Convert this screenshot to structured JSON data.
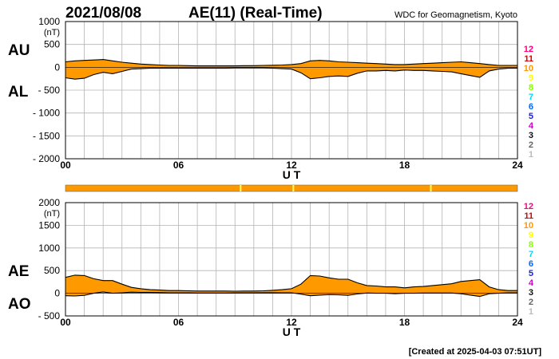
{
  "header": {
    "date": "2021/08/08",
    "title": "AE(11) (Real-Time)",
    "source": "WDC for Geomagnetism, Kyoto"
  },
  "footer": {
    "created": "[Created at 2025-04-03 07:51UT]"
  },
  "colors": {
    "fill": "#ff9900",
    "grid": "#b4b4b4",
    "bar": "#ff9900",
    "bar_mark": "#ffff66"
  },
  "station_legend": [
    {
      "label": "12",
      "color": "#ff0080"
    },
    {
      "label": "11",
      "color": "#e00000"
    },
    {
      "label": "10",
      "color": "#ff9900"
    },
    {
      "label": "9",
      "color": "#ffff00"
    },
    {
      "label": "8",
      "color": "#88ff00"
    },
    {
      "label": "7",
      "color": "#00d8ff"
    },
    {
      "label": "6",
      "color": "#0066ff"
    },
    {
      "label": "5",
      "color": "#2222cc"
    },
    {
      "label": "4",
      "color": "#cc00cc"
    },
    {
      "label": "3",
      "color": "#111111"
    },
    {
      "label": "2",
      "color": "#666666"
    },
    {
      "label": "1",
      "color": "#bbbbbb"
    }
  ],
  "data_coverage_bar": {
    "marks_ut": [
      9.3,
      12.1,
      19.4
    ]
  },
  "chart_data": [
    {
      "type": "area",
      "panel": "AU/AL",
      "upper_label": "AU",
      "lower_label": "AL",
      "unit": "(nT)",
      "xlabel": "U T",
      "xlim": [
        0,
        24
      ],
      "ylim": [
        -2000,
        1000
      ],
      "yticks": [
        1000,
        500,
        0,
        -500,
        -1000,
        -1500,
        -2000
      ],
      "ytick_labels": [
        "1000",
        "500",
        "0",
        "- 500",
        "- 1000",
        "- 1500",
        "- 2000"
      ],
      "xticks": [
        0,
        6,
        12,
        18,
        24
      ],
      "xtick_labels": [
        "00",
        "06",
        "12",
        "18",
        "24"
      ],
      "x": [
        0,
        0.5,
        1,
        1.5,
        2,
        2.5,
        3,
        3.5,
        4,
        4.5,
        5,
        5.5,
        6,
        6.5,
        7,
        7.5,
        8,
        8.5,
        9,
        9.5,
        10,
        10.5,
        11,
        11.5,
        12,
        12.5,
        13,
        13.5,
        14,
        14.5,
        15,
        15.5,
        16,
        16.5,
        17,
        17.5,
        18,
        18.5,
        19,
        19.5,
        20,
        20.5,
        21,
        21.5,
        22,
        22.5,
        23,
        23.5,
        24
      ],
      "series": [
        {
          "name": "AU",
          "values": [
            120,
            140,
            150,
            160,
            170,
            140,
            110,
            90,
            70,
            60,
            50,
            40,
            40,
            35,
            30,
            30,
            30,
            30,
            30,
            35,
            35,
            40,
            45,
            50,
            60,
            80,
            140,
            150,
            140,
            120,
            110,
            100,
            90,
            80,
            70,
            60,
            60,
            70,
            80,
            90,
            100,
            110,
            120,
            100,
            80,
            60,
            40,
            40,
            40
          ]
        },
        {
          "name": "AL",
          "values": [
            -230,
            -260,
            -240,
            -160,
            -110,
            -140,
            -90,
            -40,
            -30,
            -20,
            -20,
            -20,
            -20,
            -20,
            -20,
            -20,
            -20,
            -20,
            -15,
            -15,
            -15,
            -15,
            -20,
            -30,
            -40,
            -120,
            -250,
            -230,
            -200,
            -190,
            -200,
            -130,
            -80,
            -80,
            -70,
            -80,
            -60,
            -70,
            -70,
            -80,
            -90,
            -100,
            -140,
            -180,
            -220,
            -80,
            -40,
            -20,
            -20
          ]
        }
      ]
    },
    {
      "type": "area",
      "panel": "AE/AO",
      "upper_label": "AE",
      "lower_label": "AO",
      "unit": "(nT)",
      "xlabel": "U T",
      "xlim": [
        0,
        24
      ],
      "ylim": [
        -500,
        2000
      ],
      "yticks": [
        2000,
        1500,
        1000,
        500,
        0,
        -500
      ],
      "ytick_labels": [
        "2000",
        "1500",
        "1000",
        "500",
        "0",
        "- 500"
      ],
      "xticks": [
        0,
        6,
        12,
        18,
        24
      ],
      "xtick_labels": [
        "00",
        "06",
        "12",
        "18",
        "24"
      ],
      "x": [
        0,
        0.5,
        1,
        1.5,
        2,
        2.5,
        3,
        3.5,
        4,
        4.5,
        5,
        5.5,
        6,
        6.5,
        7,
        7.5,
        8,
        8.5,
        9,
        9.5,
        10,
        10.5,
        11,
        11.5,
        12,
        12.5,
        13,
        13.5,
        14,
        14.5,
        15,
        15.5,
        16,
        16.5,
        17,
        17.5,
        18,
        18.5,
        19,
        19.5,
        20,
        20.5,
        21,
        21.5,
        22,
        22.5,
        23,
        23.5,
        24
      ],
      "series": [
        {
          "name": "AE",
          "values": [
            350,
            400,
            390,
            320,
            280,
            280,
            200,
            130,
            100,
            80,
            70,
            60,
            60,
            55,
            50,
            50,
            50,
            50,
            45,
            50,
            50,
            55,
            65,
            80,
            100,
            200,
            390,
            380,
            340,
            310,
            310,
            230,
            170,
            160,
            140,
            140,
            120,
            140,
            150,
            170,
            190,
            210,
            260,
            280,
            300,
            140,
            80,
            60,
            60
          ]
        },
        {
          "name": "AO",
          "values": [
            -55,
            -60,
            -45,
            0,
            30,
            0,
            10,
            25,
            20,
            20,
            15,
            10,
            10,
            8,
            5,
            5,
            5,
            5,
            8,
            10,
            10,
            12,
            12,
            10,
            10,
            -20,
            -55,
            -40,
            -30,
            -35,
            -45,
            -15,
            5,
            0,
            0,
            -10,
            0,
            0,
            5,
            5,
            5,
            5,
            -10,
            -40,
            -70,
            -10,
            0,
            10,
            10
          ]
        }
      ]
    }
  ]
}
